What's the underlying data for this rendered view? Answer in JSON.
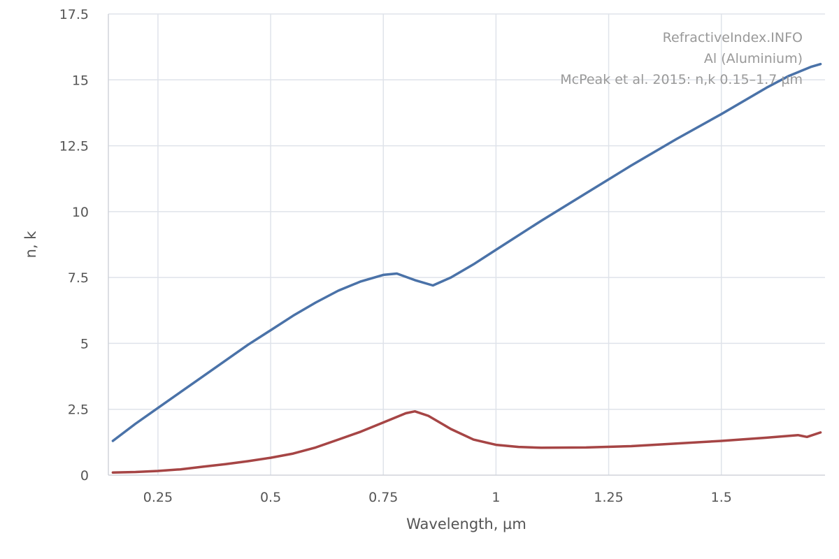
{
  "chart_data": {
    "type": "line",
    "xlabel": "Wavelength, µm",
    "ylabel": "n, k",
    "xlim": [
      0.14,
      1.73
    ],
    "ylim": [
      0,
      17.5
    ],
    "grid": true,
    "x_ticks": [
      {
        "value": 0.25,
        "label": "0.25"
      },
      {
        "value": 0.5,
        "label": "0.5"
      },
      {
        "value": 0.75,
        "label": "0.75"
      },
      {
        "value": 1,
        "label": "1"
      },
      {
        "value": 1.25,
        "label": "1.25"
      },
      {
        "value": 1.5,
        "label": "1.5"
      }
    ],
    "y_ticks": [
      {
        "value": 0,
        "label": "0"
      },
      {
        "value": 2.5,
        "label": "2.5"
      },
      {
        "value": 5,
        "label": "5"
      },
      {
        "value": 7.5,
        "label": "7.5"
      },
      {
        "value": 10,
        "label": "10"
      },
      {
        "value": 12.5,
        "label": "12.5"
      },
      {
        "value": 15,
        "label": "15"
      },
      {
        "value": 17.5,
        "label": "17.5"
      }
    ],
    "annotations": [
      "RefractiveIndex.INFO",
      "Al (Aluminium)",
      "McPeak et al. 2015: n,k 0.15–1.7 µm"
    ],
    "series": [
      {
        "color": "#4a72a8",
        "x": [
          0.15,
          0.2,
          0.25,
          0.3,
          0.35,
          0.4,
          0.45,
          0.5,
          0.55,
          0.6,
          0.65,
          0.7,
          0.75,
          0.78,
          0.82,
          0.86,
          0.9,
          0.95,
          1.0,
          1.1,
          1.2,
          1.3,
          1.4,
          1.5,
          1.6,
          1.65,
          1.7,
          1.72
        ],
        "y": [
          1.3,
          1.95,
          2.55,
          3.15,
          3.75,
          4.35,
          4.95,
          5.5,
          6.05,
          6.55,
          7.0,
          7.35,
          7.6,
          7.65,
          7.4,
          7.2,
          7.5,
          8.0,
          8.55,
          9.65,
          10.7,
          11.75,
          12.75,
          13.7,
          14.7,
          15.15,
          15.5,
          15.6
        ]
      },
      {
        "color": "#a64545",
        "x": [
          0.15,
          0.2,
          0.25,
          0.3,
          0.35,
          0.4,
          0.45,
          0.5,
          0.55,
          0.6,
          0.65,
          0.7,
          0.75,
          0.8,
          0.82,
          0.85,
          0.9,
          0.95,
          1.0,
          1.05,
          1.1,
          1.2,
          1.3,
          1.4,
          1.5,
          1.6,
          1.67,
          1.69,
          1.72
        ],
        "y": [
          0.1,
          0.12,
          0.16,
          0.22,
          0.32,
          0.42,
          0.53,
          0.66,
          0.82,
          1.05,
          1.35,
          1.65,
          2.0,
          2.35,
          2.42,
          2.25,
          1.75,
          1.35,
          1.15,
          1.07,
          1.04,
          1.05,
          1.1,
          1.2,
          1.3,
          1.42,
          1.52,
          1.45,
          1.62
        ]
      }
    ]
  }
}
